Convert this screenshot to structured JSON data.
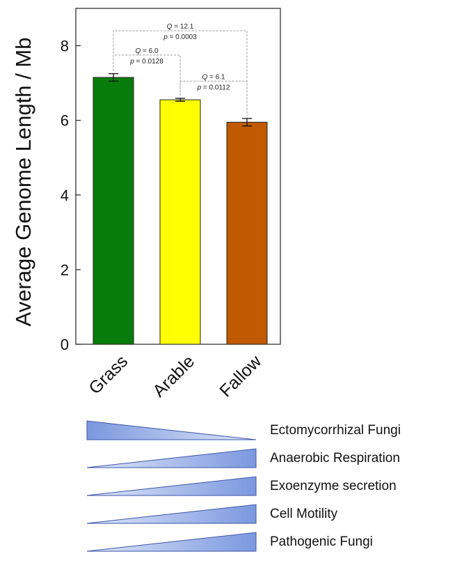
{
  "chart_data": {
    "type": "bar",
    "categories": [
      "Grass",
      "Arable",
      "Fallow"
    ],
    "values": [
      7.15,
      6.55,
      5.95
    ],
    "errors": [
      0.1,
      0.04,
      0.1
    ],
    "colors": [
      "#087c0b",
      "#ffff00",
      "#c05a00"
    ],
    "ylabel": "Average Genome Length / Mb",
    "ylim": [
      0,
      9
    ],
    "yticks": [
      0,
      2,
      4,
      6,
      8
    ],
    "grid": false,
    "comparisons": [
      {
        "from": "Grass",
        "to": "Fallow",
        "q_label": "Q",
        "q_value": "= 12.1",
        "p_label": "p",
        "p_value": "= 0.0003",
        "level": 8.4
      },
      {
        "from": "Grass",
        "to": "Arable",
        "q_label": "Q",
        "q_value": "= 6.0",
        "p_label": "p",
        "p_value": "= 0.0128",
        "level": 7.75
      },
      {
        "from": "Arable",
        "to": "Fallow",
        "q_label": "Q",
        "q_value": "= 6.1",
        "p_label": "p",
        "p_value": "= 0.0112",
        "level": 7.05
      }
    ]
  },
  "trends": [
    {
      "label": "Ectomycorrhizal  Fungi",
      "direction": "decreasing"
    },
    {
      "label": "Anaerobic Respiration",
      "direction": "increasing"
    },
    {
      "label": "Exoenzyme secretion",
      "direction": "increasing"
    },
    {
      "label": "Cell Motility",
      "direction": "increasing"
    },
    {
      "label": "Pathogenic Fungi",
      "direction": "increasing"
    }
  ],
  "trend_color": "#7b98de"
}
